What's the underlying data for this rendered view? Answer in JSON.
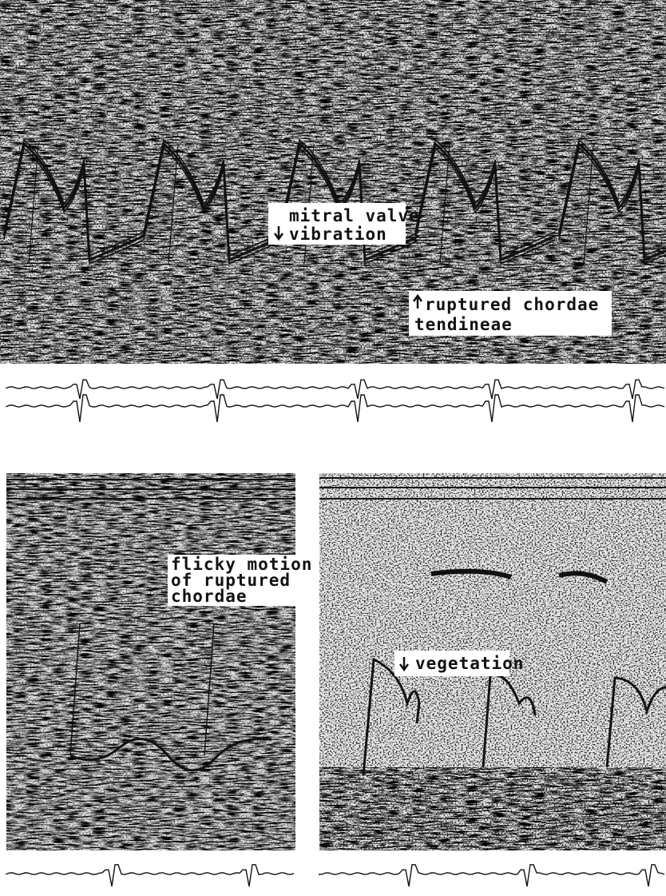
{
  "panels": [
    {
      "annotations": [
        {
          "lines": [
            "mitral valve",
            "vibration"
          ]
        },
        {
          "lines": [
            "ruptured chordae",
            "tendineae"
          ]
        }
      ]
    },
    {
      "annotations": [
        {
          "lines": [
            "flicky motion",
            "of ruptured",
            "chordae"
          ]
        }
      ]
    },
    {
      "annotations": [
        {
          "lines": [
            "vegetation"
          ]
        }
      ]
    }
  ]
}
